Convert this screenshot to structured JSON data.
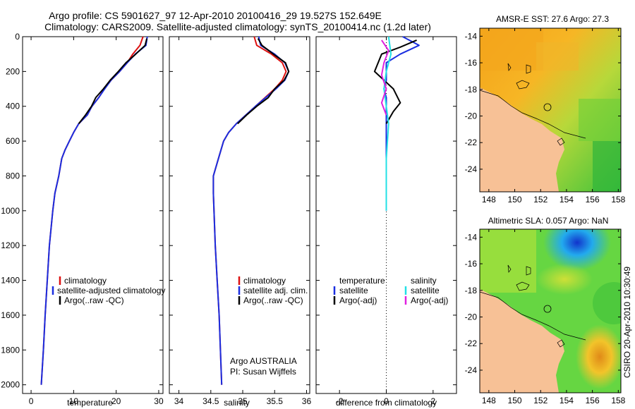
{
  "title": {
    "line1": "Argo profile: CS 5901627_97 12-Apr-2010 20100416_29 19.527S 152.649E",
    "line2": "Climatology: CARS2009. Satellite-adjusted climatology: synTS_20100414.nc (1.2d later)"
  },
  "side_label": "CSIRO  20-Apr-2010 10:30:49",
  "credit": {
    "line1": "Argo AUSTRALIA",
    "line2": "PI: Susan Wijffels"
  },
  "colors": {
    "climatology": "#dd1111",
    "satellite": "#1a2ee0",
    "argo": "#000000",
    "satellite_salinity": "#22e0e6",
    "argo_salinity": "#e020e0",
    "land": "#f7c196"
  },
  "chart_data": [
    {
      "id": "temperature_profile",
      "type": "line",
      "xlabel": "temperature",
      "ylabel": "",
      "xlim": [
        -2,
        31
      ],
      "ylim": [
        2050,
        0
      ],
      "xticks": [
        "0",
        "10",
        "20",
        "30"
      ],
      "xtick_values": [
        0,
        10,
        20,
        30
      ],
      "yticks": [
        "0",
        "200",
        "400",
        "600",
        "800",
        "1000",
        "1200",
        "1400",
        "1600",
        "1800",
        "2000"
      ],
      "ytick_values": [
        0,
        200,
        400,
        600,
        800,
        1000,
        1200,
        1400,
        1600,
        1800,
        2000
      ],
      "legend": [
        "climatology",
        "satellite-adjusted climatology",
        "Argo(..raw -QC)"
      ],
      "series": [
        {
          "name": "climatology",
          "color": "#dd1111",
          "points": [
            [
              26.3,
              0
            ],
            [
              25.6,
              50
            ],
            [
              23.9,
              100
            ],
            [
              22.6,
              150
            ],
            [
              20.8,
              200
            ],
            [
              18.8,
              250
            ],
            [
              17.2,
              300
            ],
            [
              15.9,
              350
            ],
            [
              14.3,
              400
            ],
            [
              13.2,
              450
            ],
            [
              11.2,
              500
            ],
            [
              10.0,
              550
            ],
            [
              9.0,
              600
            ],
            [
              8.0,
              650
            ],
            [
              7.2,
              700
            ],
            [
              6.5,
              800
            ],
            [
              5.6,
              900
            ],
            [
              5.1,
              1000
            ],
            [
              4.3,
              1200
            ],
            [
              3.8,
              1400
            ],
            [
              3.3,
              1600
            ],
            [
              2.9,
              1800
            ],
            [
              2.4,
              2000
            ]
          ]
        },
        {
          "name": "satellite-adjusted climatology",
          "color": "#1a2ee0",
          "points": [
            [
              27.3,
              0
            ],
            [
              27.0,
              50
            ],
            [
              24.5,
              100
            ],
            [
              22.6,
              150
            ],
            [
              20.8,
              200
            ],
            [
              18.8,
              250
            ],
            [
              17.3,
              300
            ],
            [
              15.9,
              350
            ],
            [
              14.3,
              400
            ],
            [
              13.2,
              450
            ],
            [
              11.2,
              500
            ],
            [
              10.0,
              550
            ],
            [
              9.0,
              600
            ],
            [
              8.0,
              650
            ],
            [
              7.2,
              700
            ],
            [
              6.5,
              800
            ],
            [
              5.6,
              900
            ],
            [
              5.1,
              1000
            ],
            [
              4.3,
              1200
            ],
            [
              3.8,
              1400
            ],
            [
              3.3,
              1600
            ],
            [
              2.9,
              1800
            ],
            [
              2.4,
              2000
            ]
          ]
        },
        {
          "name": "Argo(..raw -QC)",
          "color": "#000000",
          "points": [
            [
              27.2,
              10
            ],
            [
              26.8,
              50
            ],
            [
              24.6,
              100
            ],
            [
              22.3,
              150
            ],
            [
              20.5,
              200
            ],
            [
              18.6,
              250
            ],
            [
              17.0,
              300
            ],
            [
              15.2,
              350
            ],
            [
              14.2,
              400
            ],
            [
              12.8,
              450
            ],
            [
              11.2,
              500
            ]
          ]
        }
      ]
    },
    {
      "id": "salinity_profile",
      "type": "line",
      "xlabel": "salinity",
      "ylabel": "",
      "xlim": [
        33.85,
        36.05
      ],
      "ylim": [
        2050,
        0
      ],
      "xticks": [
        "34",
        "34.5",
        "35",
        "35.5",
        "36"
      ],
      "xtick_values": [
        34,
        34.5,
        35,
        35.5,
        36
      ],
      "legend": [
        "climatology",
        "satellite adj. clim.",
        "Argo(..raw -QC)"
      ],
      "series": [
        {
          "name": "climatology",
          "color": "#dd1111",
          "points": [
            [
              35.18,
              0
            ],
            [
              35.22,
              50
            ],
            [
              35.45,
              100
            ],
            [
              35.62,
              150
            ],
            [
              35.68,
              200
            ],
            [
              35.62,
              250
            ],
            [
              35.5,
              300
            ],
            [
              35.35,
              350
            ],
            [
              35.2,
              400
            ],
            [
              35.05,
              450
            ],
            [
              34.9,
              500
            ],
            [
              34.78,
              550
            ],
            [
              34.7,
              600
            ],
            [
              34.62,
              700
            ],
            [
              34.54,
              800
            ],
            [
              34.54,
              900
            ],
            [
              34.55,
              1000
            ],
            [
              34.57,
              1200
            ],
            [
              34.6,
              1400
            ],
            [
              34.63,
              1600
            ],
            [
              34.65,
              1800
            ],
            [
              34.67,
              2000
            ]
          ]
        },
        {
          "name": "satellite adj. clim.",
          "color": "#1a2ee0",
          "points": [
            [
              35.25,
              0
            ],
            [
              35.28,
              50
            ],
            [
              35.5,
              100
            ],
            [
              35.66,
              150
            ],
            [
              35.72,
              200
            ],
            [
              35.66,
              250
            ],
            [
              35.52,
              300
            ],
            [
              35.36,
              350
            ],
            [
              35.2,
              400
            ],
            [
              35.05,
              450
            ],
            [
              34.9,
              500
            ],
            [
              34.78,
              550
            ],
            [
              34.7,
              600
            ],
            [
              34.62,
              700
            ],
            [
              34.54,
              800
            ],
            [
              34.54,
              900
            ],
            [
              34.55,
              1000
            ],
            [
              34.57,
              1200
            ],
            [
              34.6,
              1400
            ],
            [
              34.63,
              1600
            ],
            [
              34.65,
              1800
            ],
            [
              34.67,
              2000
            ]
          ]
        },
        {
          "name": "Argo(..raw -QC)",
          "color": "#000000",
          "points": [
            [
              35.24,
              10
            ],
            [
              35.3,
              50
            ],
            [
              35.48,
              100
            ],
            [
              35.67,
              150
            ],
            [
              35.72,
              200
            ],
            [
              35.65,
              250
            ],
            [
              35.5,
              300
            ],
            [
              35.4,
              350
            ],
            [
              35.22,
              400
            ],
            [
              35.06,
              450
            ],
            [
              34.92,
              500
            ]
          ]
        }
      ]
    },
    {
      "id": "difference_profile",
      "type": "line",
      "xlabel": "difference from climatology",
      "ylabel": "",
      "xlim": [
        -3.0,
        3.0
      ],
      "ylim": [
        2050,
        0
      ],
      "xticks": [
        "-2",
        "0",
        "2"
      ],
      "xtick_values": [
        -2,
        0,
        2
      ],
      "legend_headers": [
        "temperature",
        "salinity"
      ],
      "legend": [
        "satellite",
        "Argo(-adj)",
        "satellite",
        "Argo(-adj)"
      ],
      "series": [
        {
          "name": "satellite",
          "group": "temperature",
          "color": "#1a2ee0",
          "points": [
            [
              0.7,
              0
            ],
            [
              1.4,
              50
            ],
            [
              0.6,
              100
            ],
            [
              0.0,
              150
            ],
            [
              0.0,
              200
            ],
            [
              0.0,
              250
            ],
            [
              -0.1,
              300
            ],
            [
              0.0,
              350
            ],
            [
              0.0,
              400
            ],
            [
              0.0,
              500
            ],
            [
              0.0,
              600
            ],
            [
              0.0,
              800
            ],
            [
              0.0,
              1000
            ]
          ]
        },
        {
          "name": "Argo(-adj)",
          "group": "temperature",
          "color": "#000000",
          "points": [
            [
              1.3,
              20
            ],
            [
              0.6,
              60
            ],
            [
              -0.2,
              100
            ],
            [
              -0.5,
              200
            ],
            [
              0.3,
              300
            ],
            [
              0.6,
              380
            ],
            [
              0.3,
              430
            ],
            [
              0.0,
              500
            ]
          ]
        },
        {
          "name": "satellite",
          "group": "salinity",
          "color": "#22e0e6",
          "points": [
            [
              0.1,
              0
            ],
            [
              0.2,
              100
            ],
            [
              0.0,
              200
            ],
            [
              -0.1,
              300
            ],
            [
              0.0,
              400
            ],
            [
              0.1,
              500
            ],
            [
              0.0,
              700
            ],
            [
              0.0,
              1000
            ]
          ]
        },
        {
          "name": "Argo(-adj)",
          "group": "salinity",
          "color": "#e020e0",
          "points": [
            [
              -0.2,
              20
            ],
            [
              0.1,
              80
            ],
            [
              -0.1,
              150
            ],
            [
              -0.2,
              220
            ],
            [
              0.0,
              300
            ],
            [
              -0.2,
              380
            ],
            [
              0.0,
              450
            ]
          ]
        }
      ]
    },
    {
      "id": "sst_map",
      "type": "heatmap",
      "title": "AMSR-E SST: 27.6 Argo: 27.3",
      "xlim": [
        147.3,
        158.2
      ],
      "ylim": [
        -25.7,
        -13.4
      ],
      "xticks": [
        "148",
        "150",
        "152",
        "154",
        "156",
        "158"
      ],
      "xtick_values": [
        148,
        150,
        152,
        154,
        156,
        158
      ],
      "yticks": [
        "-14",
        "-16",
        "-18",
        "-20",
        "-22",
        "-24"
      ],
      "ytick_values": [
        -14,
        -16,
        -18,
        -20,
        -22,
        -24
      ],
      "argo_position": [
        152.649,
        -19.527
      ]
    },
    {
      "id": "sla_map",
      "type": "heatmap",
      "title": "Altimetric SLA: 0.057 Argo: NaN",
      "xlim": [
        147.3,
        158.2
      ],
      "ylim": [
        -25.7,
        -13.4
      ],
      "xticks": [
        "148",
        "150",
        "152",
        "154",
        "156",
        "158"
      ],
      "xtick_values": [
        148,
        150,
        152,
        154,
        156,
        158
      ],
      "yticks": [
        "-14",
        "-16",
        "-18",
        "-20",
        "-22",
        "-24"
      ],
      "ytick_values": [
        -14,
        -16,
        -18,
        -20,
        -22,
        -24
      ],
      "argo_position": [
        152.649,
        -19.527
      ]
    }
  ]
}
